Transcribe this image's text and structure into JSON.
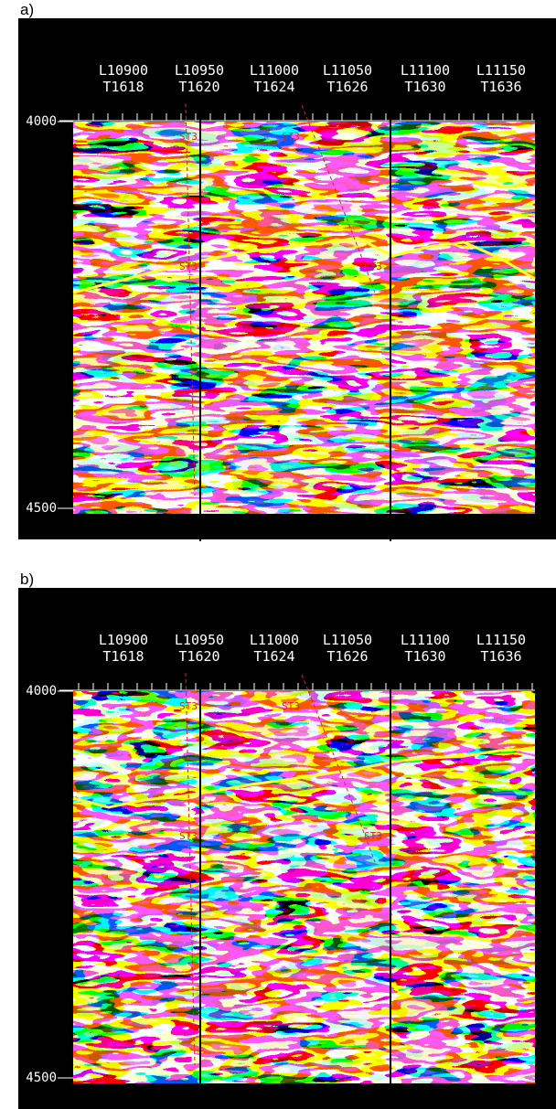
{
  "panels": [
    {
      "label": "a)",
      "columns": [
        {
          "line": "L10900",
          "trace": "T1618"
        },
        {
          "line": "L10950",
          "trace": "T1620"
        },
        {
          "line": "L11000",
          "trace": "T1624"
        },
        {
          "line": "L11050",
          "trace": "T1626"
        },
        {
          "line": "L11100",
          "trace": "T1630"
        },
        {
          "line": "L11150",
          "trace": "T1636"
        }
      ],
      "y_labels": [
        "4000",
        "4500"
      ],
      "well_labels": [
        "ST3",
        "ST3",
        "ST3",
        "ST3"
      ]
    },
    {
      "label": "b)",
      "columns": [
        {
          "line": "L10900",
          "trace": "T1618"
        },
        {
          "line": "L10950",
          "trace": "T1620"
        },
        {
          "line": "L11000",
          "trace": "T1624"
        },
        {
          "line": "L11050",
          "trace": "T1626"
        },
        {
          "line": "L11100",
          "trace": "T1630"
        },
        {
          "line": "L11150",
          "trace": "T1636"
        }
      ],
      "y_labels": [
        "4000",
        "4500"
      ],
      "well_labels": [
        "ST3",
        "ST3",
        "ST3",
        "ST3"
      ]
    }
  ]
}
